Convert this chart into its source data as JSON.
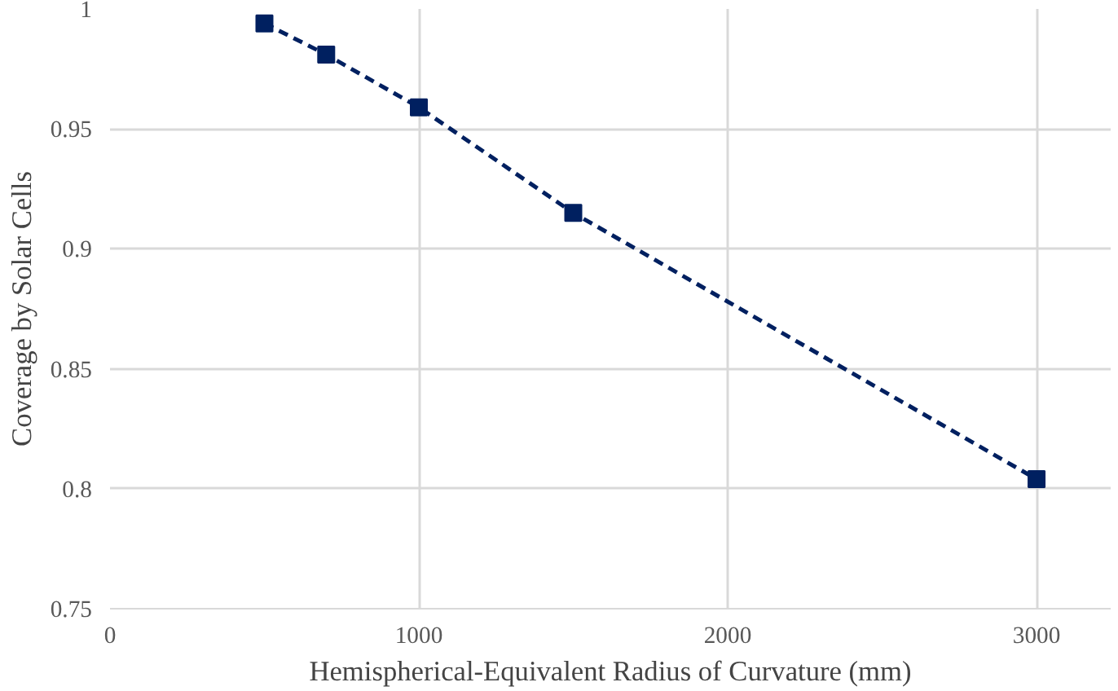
{
  "chart_data": {
    "type": "line",
    "xlabel": "Hemispherical-Equivalent Radius of Curvature (mm)",
    "ylabel": "Coverage by Solar Cells",
    "x": [
      500,
      700,
      1000,
      1500,
      3000
    ],
    "series": [
      {
        "color": "#002060",
        "values": [
          0.994,
          0.981,
          0.959,
          0.915,
          0.804
        ]
      }
    ],
    "xlim": [
      0,
      3240
    ],
    "xticks": [
      0,
      1000,
      2000,
      3000
    ],
    "ylim": [
      0.75,
      1
    ],
    "yticks": [
      0.75,
      0.8,
      0.85,
      0.9,
      0.95,
      1
    ],
    "grid": true,
    "marker": "square",
    "line_style": "dashed"
  }
}
